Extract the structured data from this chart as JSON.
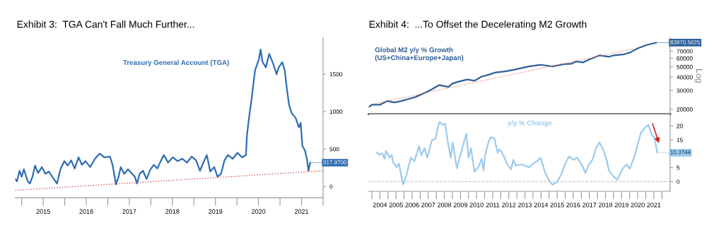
{
  "chart_data": [
    {
      "type": "line",
      "title": "Exhibit 3:  TGA Can't Fall Much Further...",
      "annotations": [
        "Treasury General Account (TGA)",
        {
          "text": "317.9700",
          "x": 2021.7,
          "y": 317.97
        }
      ],
      "xlim": [
        2014.85,
        2022.0
      ],
      "ylim": [
        -150,
        1990
      ],
      "yticks": [
        0,
        500,
        1000,
        1500
      ],
      "xticks": [
        {
          "value": 2015,
          "label": null
        },
        {
          "value": 2015.5,
          "label": "2015"
        },
        {
          "value": 2016,
          "label": null
        },
        {
          "value": 2016.5,
          "label": "2016"
        },
        {
          "value": 2017,
          "label": null
        },
        {
          "value": 2017.5,
          "label": "2017"
        },
        {
          "value": 2018,
          "label": null
        },
        {
          "value": 2018.5,
          "label": "2018"
        },
        {
          "value": 2019,
          "label": null
        },
        {
          "value": 2019.5,
          "label": "2019"
        },
        {
          "value": 2020,
          "label": null
        },
        {
          "value": 2020.5,
          "label": "2020"
        },
        {
          "value": 2021,
          "label": null
        },
        {
          "value": 2021.5,
          "label": "2021"
        },
        {
          "value": 2022,
          "label": null
        }
      ],
      "series": [
        {
          "color": "#2e6db4",
          "x": [
            2014.85,
            2014.89,
            2014.95,
            2015.0,
            2015.05,
            2015.14,
            2015.19,
            2015.25,
            2015.31,
            2015.38,
            2015.47,
            2015.55,
            2015.63,
            2015.71,
            2015.82,
            2015.9,
            2015.99,
            2016.07,
            2016.15,
            2016.23,
            2016.32,
            2016.4,
            2016.48,
            2016.59,
            2016.7,
            2016.81,
            2016.92,
            2017.05,
            2017.11,
            2017.19,
            2017.25,
            2017.3,
            2017.38,
            2017.47,
            2017.55,
            2017.63,
            2017.68,
            2017.74,
            2017.82,
            2017.9,
            2017.99,
            2018.07,
            2018.15,
            2018.23,
            2018.3,
            2018.4,
            2018.51,
            2018.62,
            2018.73,
            2018.84,
            2018.95,
            2019.05,
            2019.14,
            2019.22,
            2019.3,
            2019.38,
            2019.47,
            2019.55,
            2019.63,
            2019.71,
            2019.79,
            2019.9,
            2020.01,
            2020.12,
            2020.21,
            2020.23,
            2020.28,
            2020.34,
            2020.42,
            2020.51,
            2020.55,
            2020.59,
            2020.67,
            2020.75,
            2020.84,
            2020.92,
            2020.97,
            2021.05,
            2021.11,
            2021.16,
            2021.21,
            2021.27,
            2021.36,
            2021.44,
            2021.48,
            2021.52,
            2021.58,
            2021.63,
            2021.66,
            2021.7
          ],
          "values": [
            100,
            70,
            210,
            130,
            230,
            70,
            40,
            130,
            280,
            180,
            260,
            170,
            200,
            130,
            40,
            230,
            340,
            280,
            350,
            240,
            390,
            290,
            340,
            260,
            370,
            440,
            390,
            400,
            290,
            30,
            130,
            260,
            170,
            230,
            180,
            130,
            40,
            170,
            210,
            100,
            230,
            290,
            240,
            340,
            420,
            320,
            390,
            340,
            370,
            320,
            400,
            350,
            210,
            320,
            420,
            200,
            260,
            130,
            170,
            350,
            420,
            370,
            450,
            390,
            420,
            670,
            920,
            1170,
            1550,
            1700,
            1830,
            1670,
            1590,
            1770,
            1640,
            1500,
            1590,
            1660,
            1550,
            1300,
            1090,
            980,
            920,
            790,
            850,
            540,
            480,
            350,
            210,
            317.97
          ]
        },
        {
          "color": "#e05050",
          "line_style": "dotted",
          "x": [
            2014.85,
            2022.0
          ],
          "values": [
            -50,
            210
          ]
        }
      ]
    },
    {
      "type": "line",
      "title": "Exhibit 4:  ...To Offset the Decelerating M2 Growth",
      "ylabel": "Log",
      "log": true,
      "tick_labels": "y",
      "annotations": [
        "Global M2 y/y % Growth\n(US+China+Europe+Japan)",
        {
          "text": "83970.5625",
          "x": 2021.64,
          "y": 83970.5625
        }
      ],
      "xlim": [
        2003.81,
        2022.51
      ],
      "ylim": [
        18000,
        94000
      ],
      "yticks": [
        20000,
        30000,
        40000,
        50000,
        60000,
        70000
      ],
      "series": [
        {
          "color": "#2f5f9a",
          "x": [
            2003.81,
            2004.0,
            2004.51,
            2004.95,
            2005.39,
            2005.83,
            2006.27,
            2006.71,
            2007.29,
            2007.73,
            2008.17,
            2008.47,
            2008.76,
            2008.98,
            2009.34,
            2009.93,
            2010.37,
            2010.81,
            2011.25,
            2011.69,
            2012.27,
            2012.86,
            2013.74,
            2014.47,
            2015.2,
            2015.93,
            2016.37,
            2016.66,
            2017.1,
            2017.54,
            2018.13,
            2018.71,
            2019.01,
            2019.59,
            2020.03,
            2020.47,
            2021.06,
            2021.5,
            2021.64
          ],
          "values": [
            21000,
            22100,
            22100,
            23900,
            23200,
            23900,
            25000,
            26100,
            28500,
            30800,
            33700,
            33000,
            32400,
            34700,
            36200,
            38000,
            37000,
            40500,
            42100,
            44300,
            45300,
            47000,
            50300,
            52200,
            50300,
            52900,
            53300,
            56000,
            54900,
            59000,
            63900,
            62000,
            63900,
            65100,
            68000,
            74000,
            79900,
            83000,
            83970.5625
          ]
        },
        {
          "color": "#e88a7a",
          "line_style": "dotted",
          "x": [
            2004.22,
            2020.32
          ],
          "values": [
            22700,
            74000
          ]
        }
      ]
    },
    {
      "type": "line",
      "annotations": [
        "y/y % Change",
        {
          "text": "10.3744",
          "x": 2021.72,
          "y": 10.3744
        }
      ],
      "xlim": [
        2003.81,
        2022.51
      ],
      "ylim": [
        -3.5,
        24.2
      ],
      "yticks": [
        0,
        5,
        {
          "value": 10,
          "label": null
        },
        15,
        20
      ],
      "xticks": [
        {
          "value": 2004,
          "label": null
        },
        {
          "value": 2004.5,
          "label": "2004"
        },
        {
          "value": 2005,
          "label": null
        },
        {
          "value": 2005.5,
          "label": "2005"
        },
        {
          "value": 2006,
          "label": null
        },
        {
          "value": 2006.5,
          "label": "2006"
        },
        {
          "value": 2007,
          "label": null
        },
        {
          "value": 2007.5,
          "label": "2007"
        },
        {
          "value": 2008,
          "label": null
        },
        {
          "value": 2008.5,
          "label": "2008"
        },
        {
          "value": 2009,
          "label": null
        },
        {
          "value": 2009.5,
          "label": "2009"
        },
        {
          "value": 2010,
          "label": null
        },
        {
          "value": 2010.5,
          "label": "2010"
        },
        {
          "value": 2011,
          "label": null
        },
        {
          "value": 2011.5,
          "label": "2011"
        },
        {
          "value": 2012,
          "label": null
        },
        {
          "value": 2012.5,
          "label": "2012"
        },
        {
          "value": 2013,
          "label": null
        },
        {
          "value": 2013.5,
          "label": "2013"
        },
        {
          "value": 2014,
          "label": null
        },
        {
          "value": 2014.5,
          "label": "2014"
        },
        {
          "value": 2015,
          "label": null
        },
        {
          "value": 2015.5,
          "label": "2015"
        },
        {
          "value": 2016,
          "label": null
        },
        {
          "value": 2016.5,
          "label": "2016"
        },
        {
          "value": 2017,
          "label": null
        },
        {
          "value": 2017.5,
          "label": "2017"
        },
        {
          "value": 2018,
          "label": null
        },
        {
          "value": 2018.5,
          "label": "2018"
        },
        {
          "value": 2019,
          "label": null
        },
        {
          "value": 2019.5,
          "label": "2019"
        },
        {
          "value": 2020,
          "label": null
        },
        {
          "value": 2020.5,
          "label": "2020"
        },
        {
          "value": 2021,
          "label": null
        },
        {
          "value": 2021.5,
          "label": "2021"
        },
        {
          "value": 2022,
          "label": null
        }
      ],
      "ref_lines": [
        {
          "axis": "y",
          "value": 0,
          "color": "#bbbbbb",
          "line_style": "dashed"
        }
      ],
      "series": [
        {
          "color": "#9ccbee",
          "x": [
            2004.29,
            2004.44,
            2004.66,
            2004.78,
            2004.88,
            2005.1,
            2005.24,
            2005.32,
            2005.54,
            2005.68,
            2005.83,
            2005.95,
            2006.12,
            2006.42,
            2006.64,
            2006.93,
            2007.07,
            2007.27,
            2007.44,
            2007.73,
            2007.95,
            2008.1,
            2008.2,
            2008.39,
            2008.54,
            2008.73,
            2008.9,
            2009.02,
            2009.27,
            2009.49,
            2009.86,
            2010.0,
            2010.15,
            2010.37,
            2010.66,
            2010.81,
            2010.93,
            2011.03,
            2011.25,
            2011.39,
            2011.61,
            2011.8,
            2011.91,
            2012.13,
            2012.42,
            2012.64,
            2012.78,
            2012.93,
            2013.3,
            2013.74,
            2014.03,
            2014.25,
            2014.47,
            2014.76,
            2014.98,
            2015.2,
            2015.49,
            2015.79,
            2016.01,
            2016.23,
            2016.52,
            2016.74,
            2017.03,
            2017.25,
            2017.47,
            2017.69,
            2017.91,
            2018.13,
            2018.35,
            2018.57,
            2018.71,
            2018.93,
            2019.23,
            2019.37,
            2019.59,
            2019.81,
            2020.0,
            2020.33,
            2020.69,
            2020.98,
            2021.17,
            2021.38,
            2021.53,
            2021.72
          ],
          "values": [
            10.5,
            9.6,
            10.1,
            8.2,
            11.0,
            8.6,
            9.5,
            6.9,
            5.2,
            6.5,
            1.9,
            -1.1,
            1.9,
            8.6,
            7.3,
            12.7,
            9.5,
            12.0,
            8.6,
            14.9,
            15.4,
            19.6,
            21.4,
            20.4,
            20.8,
            13.7,
            8.6,
            14.1,
            4.8,
            9.5,
            17.2,
            8.6,
            12.0,
            3.5,
            5.7,
            8.2,
            4.0,
            9.5,
            14.5,
            16.0,
            15.4,
            10.3,
            11.6,
            9.9,
            6.1,
            4.4,
            7.8,
            5.7,
            6.2,
            5.1,
            6.5,
            7.3,
            8.6,
            3.1,
            0.6,
            -1.1,
            -0.3,
            3.1,
            6.5,
            9.0,
            7.8,
            8.6,
            6.1,
            3.1,
            6.1,
            7.8,
            12.0,
            14.1,
            11.6,
            7.8,
            4.0,
            2.3,
            0.6,
            2.3,
            4.8,
            6.2,
            4.6,
            9.5,
            17.5,
            19.6,
            20.4,
            16.6,
            16.0,
            10.3744
          ]
        }
      ]
    }
  ]
}
